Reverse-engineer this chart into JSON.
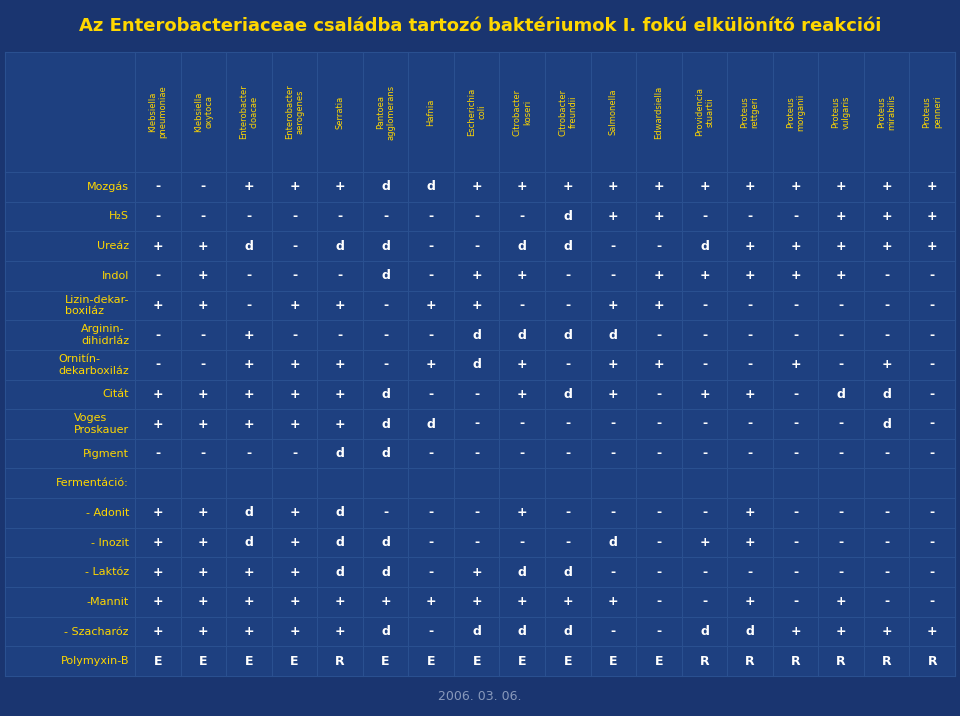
{
  "title": "Az Enterobacteriaceae családba tartozó baktériumok I. fokú elkülönítő reakciói",
  "title_color": "#FFD700",
  "title_bg_color": "#1a3570",
  "bg_color": "#1a3570",
  "cell_bg_color": "#1e4080",
  "cell_border_color": "#2a5090",
  "row_label_color": "#FFD700",
  "cell_text_color": "#FFFFFF",
  "footer_text": "2006. 03. 06.",
  "footer_color": "#8899bb",
  "columns": [
    "Klebsiella\npneumoniae",
    "Klebsiella\noxytoca",
    "Enterobacter\ncloacae",
    "Enterobacter\naerogenes",
    "Serratia",
    "Pantoea\nagglomerans",
    "Hafnia",
    "Escherichia\ncoli",
    "Citrobacter\nkoseri",
    "Citrobacter\nfreundii",
    "Salmonella",
    "Edwardsiella",
    "Providencia\nstuartii",
    "Proteus\nrettgeri",
    "Proteus\nmorganii",
    "Proteus\nvulgaris",
    "Proteus\nmirabilis",
    "Proteus\npenneri"
  ],
  "rows": [
    "Mozgás",
    "H₂S",
    "Ureáz",
    "Indol",
    "Lizin-dekar-\nboxiláz",
    "Arginin-\ndihidrláz",
    "Ornitín-\ndekarboxiláz",
    "Citát",
    "Voges\nProskauer",
    "Pigment",
    "Fermentáció:",
    "- Adonit",
    "- Inozit",
    "- Laktóz",
    "-Mannit",
    "- Szacharóz",
    "Polymyxin-B"
  ],
  "data": [
    [
      "-",
      "-",
      "+",
      "+",
      "+",
      "d",
      "d",
      "+",
      "+",
      "+",
      "+",
      "+",
      "+",
      "+",
      "+",
      "+",
      "+",
      "+"
    ],
    [
      "-",
      "-",
      "-",
      "-",
      "-",
      "-",
      "-",
      "-",
      "-",
      "d",
      "+",
      "+",
      "-",
      "-",
      "-",
      "+",
      "+",
      "+"
    ],
    [
      "+",
      "+",
      "d",
      "-",
      "d",
      "d",
      "-",
      "-",
      "d",
      "d",
      "-",
      "-",
      "d",
      "+",
      "+",
      "+",
      "+",
      "+"
    ],
    [
      "-",
      "+",
      "-",
      "-",
      "-",
      "d",
      "-",
      "+",
      "+",
      "-",
      "-",
      "+",
      "+",
      "+",
      "+",
      "+",
      "-",
      "-"
    ],
    [
      "+",
      "+",
      "-",
      "+",
      "+",
      "-",
      "+",
      "+",
      "-",
      "-",
      "+",
      "+",
      "-",
      "-",
      "-",
      "-",
      "-",
      "-"
    ],
    [
      "-",
      "-",
      "+",
      "-",
      "-",
      "-",
      "-",
      "d",
      "d",
      "d",
      "d",
      "-",
      "-",
      "-",
      "-",
      "-",
      "-",
      "-"
    ],
    [
      "-",
      "-",
      "+",
      "+",
      "+",
      "-",
      "+",
      "d",
      "+",
      "-",
      "+",
      "+",
      "-",
      "-",
      "+",
      "-",
      "+",
      "-"
    ],
    [
      "+",
      "+",
      "+",
      "+",
      "+",
      "d",
      "-",
      "-",
      "+",
      "d",
      "+",
      "-",
      "+",
      "+",
      "-",
      "d",
      "d",
      "-"
    ],
    [
      "+",
      "+",
      "+",
      "+",
      "+",
      "d",
      "d",
      "-",
      "-",
      "-",
      "-",
      "-",
      "-",
      "-",
      "-",
      "-",
      "d",
      "-"
    ],
    [
      "-",
      "-",
      "-",
      "-",
      "d",
      "d",
      "-",
      "-",
      "-",
      "-",
      "-",
      "-",
      "-",
      "-",
      "-",
      "-",
      "-",
      "-"
    ],
    [
      "",
      "",
      "",
      "",
      "",
      "",
      "",
      "",
      "",
      "",
      "",
      "",
      "",
      "",
      "",
      "",
      "",
      ""
    ],
    [
      "+",
      "+",
      "d",
      "+",
      "d",
      "-",
      "-",
      "-",
      "+",
      "-",
      "-",
      "-",
      "-",
      "+",
      "-",
      "-",
      "-",
      "-"
    ],
    [
      "+",
      "+",
      "d",
      "+",
      "d",
      "d",
      "-",
      "-",
      "-",
      "-",
      "d",
      "-",
      "+",
      "+",
      "-",
      "-",
      "-",
      "-"
    ],
    [
      "+",
      "+",
      "+",
      "+",
      "d",
      "d",
      "-",
      "+",
      "d",
      "d",
      "-",
      "-",
      "-",
      "-",
      "-",
      "-",
      "-",
      "-"
    ],
    [
      "+",
      "+",
      "+",
      "+",
      "+",
      "+",
      "+",
      "+",
      "+",
      "+",
      "+",
      "-",
      "-",
      "+",
      "-",
      "+",
      "-",
      "-"
    ],
    [
      "+",
      "+",
      "+",
      "+",
      "+",
      "d",
      "-",
      "d",
      "d",
      "d",
      "-",
      "-",
      "d",
      "d",
      "+",
      "+",
      "+",
      "+"
    ],
    [
      "E",
      "E",
      "E",
      "E",
      "R",
      "E",
      "E",
      "E",
      "E",
      "E",
      "E",
      "E",
      "R",
      "R",
      "R",
      "R",
      "R",
      "R"
    ]
  ],
  "figw": 9.6,
  "figh": 7.16,
  "dpi": 100
}
